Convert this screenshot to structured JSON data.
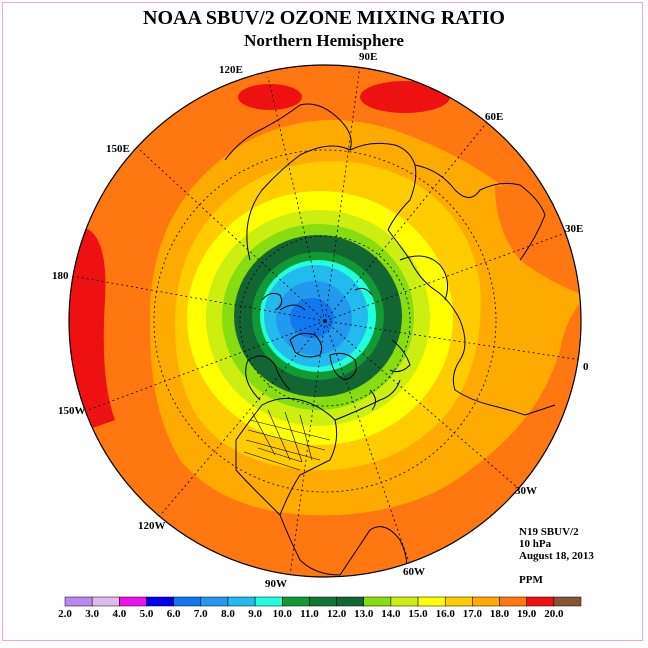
{
  "title": "NOAA SBUV/2 OZONE MIXING RATIO",
  "subtitle": "Northern Hemisphere",
  "info": {
    "satellite": "N19 SBUV/2",
    "level": "10 hPa",
    "date": "August 18, 2013",
    "units": "PPM"
  },
  "longitude_labels": [
    "120E",
    "90E",
    "60E",
    "150E",
    "30E",
    "180",
    "0",
    "150W",
    "30W",
    "120W",
    "90W",
    "60W"
  ],
  "colorbar": {
    "labels": [
      "2.0",
      "3.0",
      "4.0",
      "5.0",
      "6.0",
      "7.0",
      "8.0",
      "9.0",
      "10.0",
      "11.0",
      "12.0",
      "13.0",
      "14.0",
      "15.0",
      "16.0",
      "17.0",
      "18.0",
      "19.0",
      "20.0"
    ],
    "colors": [
      "#bb88ee",
      "#ddbbee",
      "#ee11ee",
      "#0000ee",
      "#1177ee",
      "#2299ee",
      "#22bbee",
      "#22ffdd",
      "#119933",
      "#117733",
      "#116633",
      "#88dd11",
      "#ccee11",
      "#ffff00",
      "#ffcc00",
      "#ffaa00",
      "#ff7711",
      "#ee1111",
      "#885533"
    ]
  }
}
